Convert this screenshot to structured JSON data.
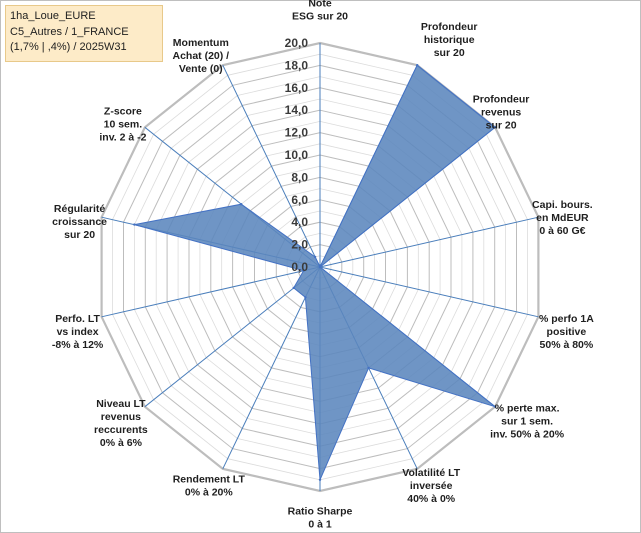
{
  "info": {
    "line1": "1ha_Loue_EURE",
    "line2": "C5_Autres / 1_FRANCE",
    "line3": "(1,7% | ,4%) / 2025W31"
  },
  "chart_data": {
    "type": "radar",
    "range": [
      0,
      20
    ],
    "ticks": [
      "0,0",
      "2,0",
      "4,0",
      "6,0",
      "8,0",
      "10,0",
      "12,0",
      "14,0",
      "16,0",
      "18,0",
      "20,0"
    ],
    "grid": true,
    "fill_color": "#5b86bd",
    "line_color": "#4472c4",
    "axes": [
      {
        "label": [
          "Note",
          "ESG sur 20"
        ],
        "value": 0
      },
      {
        "label": [
          "Profondeur",
          "historique",
          "sur 20"
        ],
        "value": 20
      },
      {
        "label": [
          "Profondeur",
          "revenus",
          "sur 20"
        ],
        "value": 20
      },
      {
        "label": [
          "Capi. bours.",
          "en MdEUR",
          "0 à 60 G€"
        ],
        "value": 0
      },
      {
        "label": [
          "% perfo 1A",
          "positive",
          "50% à 80%"
        ],
        "value": 0
      },
      {
        "label": [
          "% perte max.",
          "sur 1 sem.",
          "inv. 50% à 20%"
        ],
        "value": 20
      },
      {
        "label": [
          "Volatilité LT",
          "inversée",
          "40% à 0%"
        ],
        "value": 10
      },
      {
        "label": [
          "Ratio Sharpe",
          "0 à 1"
        ],
        "value": 19
      },
      {
        "label": [
          "Rendement LT",
          "0% à 20%"
        ],
        "value": 3
      },
      {
        "label": [
          "Niveau LT",
          "revenus",
          "reccurents",
          "0% à 6%"
        ],
        "value": 3
      },
      {
        "label": [
          "Perfo. LT",
          "vs index",
          "-8% à 12%"
        ],
        "value": 1.5
      },
      {
        "label": [
          "Régularité",
          "croissance",
          "sur 20"
        ],
        "value": 17
      },
      {
        "label": [
          "Z-score",
          "10 sem.",
          "inv. 2 à -2"
        ],
        "value": 9
      },
      {
        "label": [
          "Momentum",
          "Achat (20) /",
          "Vente (0)"
        ],
        "value": 1
      }
    ]
  }
}
